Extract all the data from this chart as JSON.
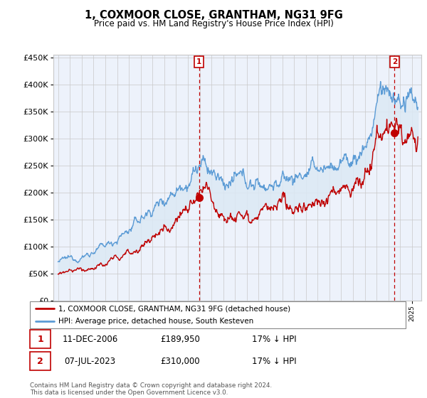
{
  "title": "1, COXMOOR CLOSE, GRANTHAM, NG31 9FG",
  "subtitle": "Price paid vs. HM Land Registry's House Price Index (HPI)",
  "legend_line1": "1, COXMOOR CLOSE, GRANTHAM, NG31 9FG (detached house)",
  "legend_line2": "HPI: Average price, detached house, South Kesteven",
  "transaction1_date": "11-DEC-2006",
  "transaction1_price": "£189,950",
  "transaction1_hpi": "17% ↓ HPI",
  "transaction2_date": "07-JUL-2023",
  "transaction2_price": "£310,000",
  "transaction2_hpi": "17% ↓ HPI",
  "footer": "Contains HM Land Registry data © Crown copyright and database right 2024.\nThis data is licensed under the Open Government Licence v3.0.",
  "hpi_color": "#5b9bd5",
  "hpi_fill_color": "#dce9f5",
  "price_color": "#c00000",
  "vline_color": "#c00000",
  "background_color": "#ffffff",
  "grid_color": "#c8c8c8",
  "ylim_min": 0,
  "ylim_max": 450000,
  "transaction1_year": 2006.94,
  "transaction1_value": 189950,
  "transaction2_year": 2023.52,
  "transaction2_value": 310000,
  "xstart": 1995,
  "xend": 2025
}
